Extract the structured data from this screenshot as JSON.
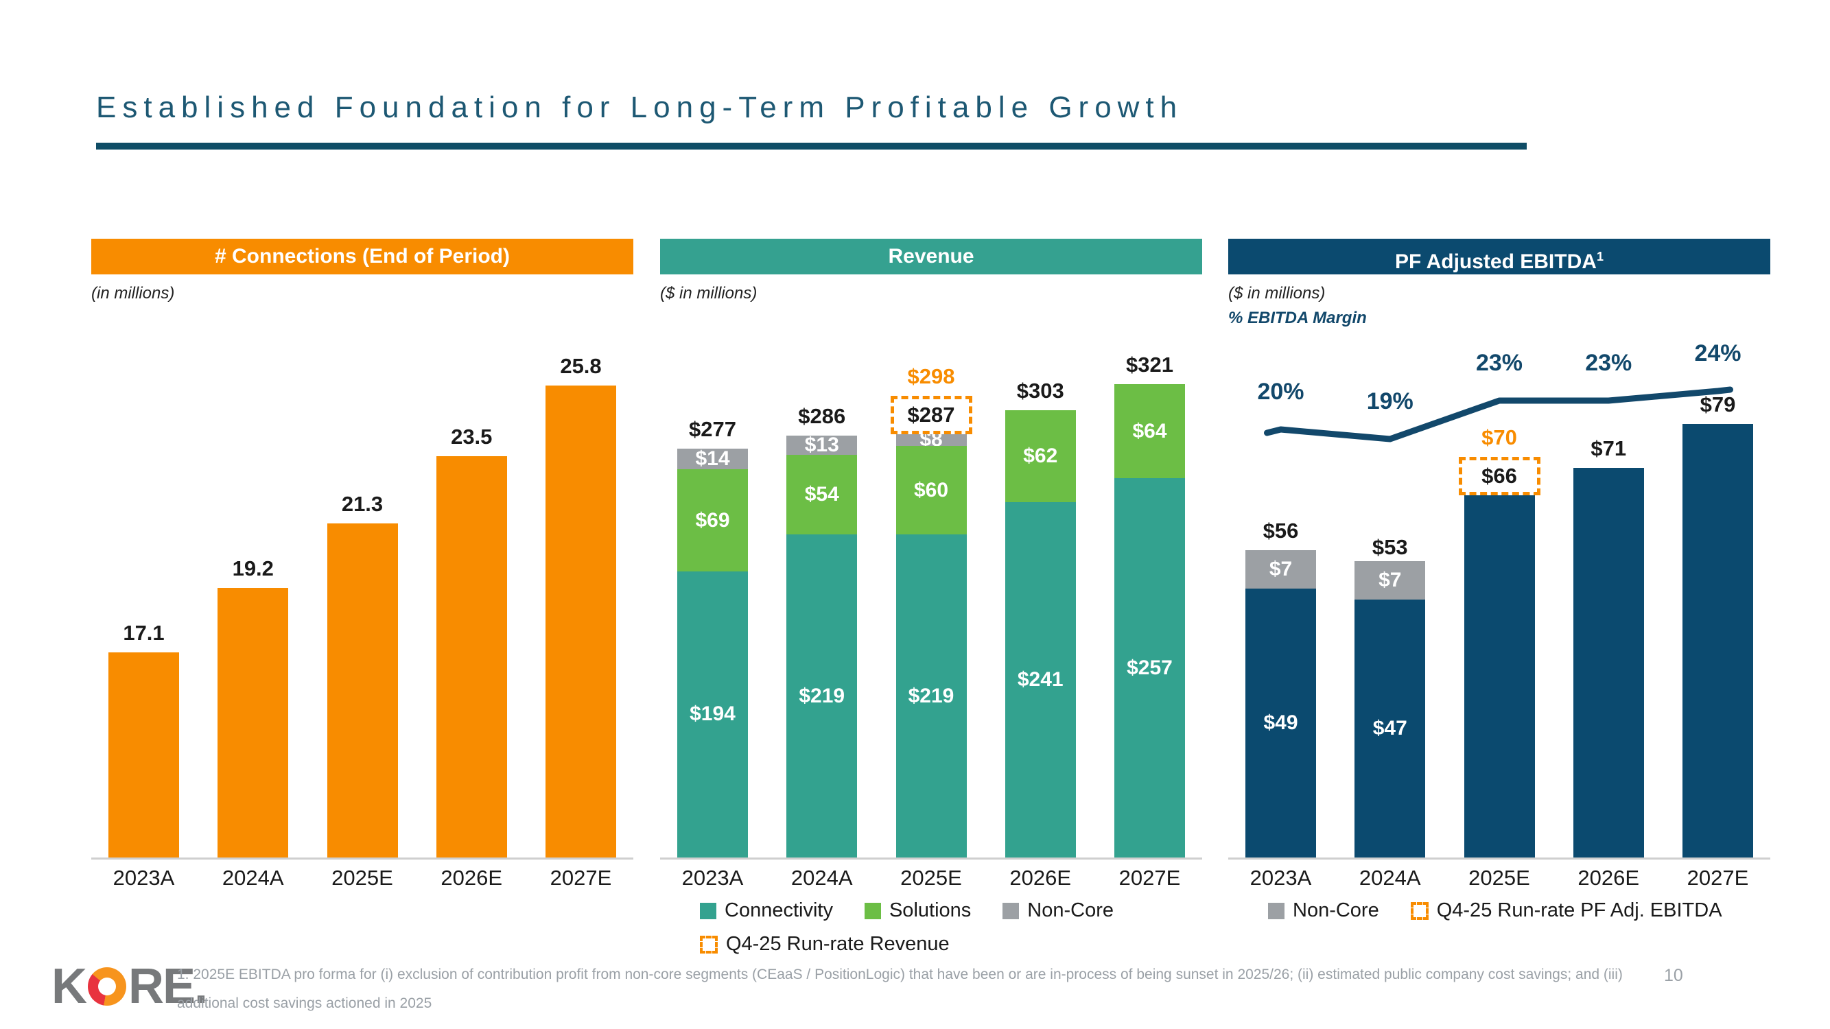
{
  "slide": {
    "title": "Established Foundation for Long-Term Profitable Growth",
    "page_number": "10",
    "footnote": "1. 2025E EBITDA pro forma for (i) exclusion of contribution profit from non-core segments (CEaaS / PositionLogic) that have been or are in-process of being sunset in 2025/26; (ii) estimated public company cost savings; and (iii) additional cost savings actioned in 2025",
    "logo": {
      "left": "K",
      "right": "RE."
    }
  },
  "colors": {
    "orange": "#f88c00",
    "teal": "#33a28f",
    "green": "#6cbe45",
    "gray": "#9ca0a4",
    "navy": "#0b4a6f",
    "line_navy": "#12486b",
    "title_navy": "#1d5873",
    "label_black": "#1a1a1a",
    "footnote_gray": "#9aa0a6"
  },
  "chart_data": [
    {
      "id": "connections",
      "type": "bar",
      "title": "# Connections (End of Period)",
      "units_label": "(in millions)",
      "label_format": "decimal1",
      "categories": [
        "2023A",
        "2024A",
        "2025E",
        "2026E",
        "2027E"
      ],
      "values": [
        17.1,
        19.2,
        21.3,
        23.5,
        25.8
      ],
      "bar_color_key": "orange",
      "ylim": [
        10.4,
        28.3
      ],
      "grid": false,
      "legend_rows": []
    },
    {
      "id": "revenue",
      "type": "stacked-bar",
      "title": "Revenue",
      "units_label": "($ in millions)",
      "label_format": "dollar",
      "categories": [
        "2023A",
        "2024A",
        "2025E",
        "2026E",
        "2027E"
      ],
      "series": [
        {
          "name": "Connectivity",
          "color_key": "teal",
          "values": [
            194,
            219,
            219,
            241,
            257
          ]
        },
        {
          "name": "Solutions",
          "color_key": "green",
          "values": [
            69,
            54,
            60,
            62,
            64
          ]
        },
        {
          "name": "Non-Core",
          "color_key": "gray",
          "values": [
            14,
            13,
            8,
            0,
            0
          ]
        }
      ],
      "totals": [
        277,
        286,
        287,
        303,
        321
      ],
      "run_rate": {
        "category_index": 2,
        "value": 298,
        "boxed_total": 287,
        "legend_label": "Q4-25 Run-rate Revenue"
      },
      "ylim": [
        0,
        372
      ],
      "grid": false,
      "legend_rows": [
        [
          {
            "swatch": "teal",
            "label": "Connectivity"
          },
          {
            "swatch": "green",
            "label": "Solutions"
          },
          {
            "swatch": "gray",
            "label": "Non-Core"
          }
        ],
        [
          {
            "swatch": "dashed",
            "label": "Q4-25 Run-rate Revenue"
          }
        ]
      ]
    },
    {
      "id": "ebitda",
      "type": "stacked-bar-line",
      "title": "PF Adjusted EBITDA",
      "title_sup": "1",
      "units_label": "($ in millions)",
      "margin_label": "% EBITDA Margin",
      "label_format": "dollar",
      "categories": [
        "2023A",
        "2024A",
        "2025E",
        "2026E",
        "2027E"
      ],
      "series": [
        {
          "name": "PF Adj. EBITDA",
          "color_key": "navy",
          "values": [
            49,
            47,
            66,
            71,
            79
          ]
        },
        {
          "name": "Non-Core",
          "color_key": "gray",
          "values": [
            7,
            7,
            0,
            0,
            0
          ]
        }
      ],
      "totals": [
        56,
        53,
        66,
        71,
        79
      ],
      "run_rate": {
        "category_index": 2,
        "value": 70,
        "boxed_total": 66,
        "legend_label": "Q4-25 Run-rate PF Adj. EBITDA"
      },
      "margin_line": {
        "label_suffix": "%",
        "values_pct": [
          20,
          19,
          23,
          23,
          24
        ]
      },
      "ylim": [
        0,
        95
      ],
      "grid": false,
      "legend_rows": [
        [
          {
            "swatch": "gray",
            "label": "Non-Core"
          },
          {
            "swatch": "dashed",
            "label": "Q4-25 Run-rate PF Adj. EBITDA"
          }
        ]
      ]
    }
  ]
}
